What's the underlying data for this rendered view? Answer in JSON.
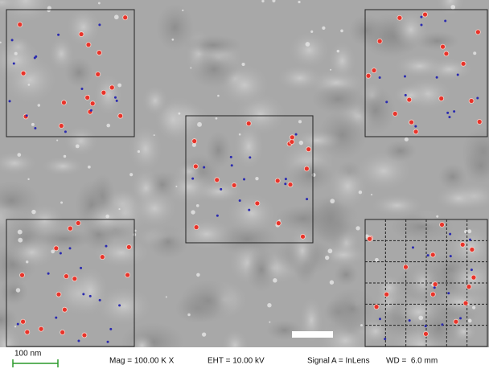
{
  "scale_bar": {
    "label": "100 nm"
  },
  "info": {
    "mag": "Mag = 100.00 K X",
    "eht": "EHT = 10.00 kV",
    "signal": "Signal A = InLens",
    "wd": "WD =  6.0 mm"
  }
}
